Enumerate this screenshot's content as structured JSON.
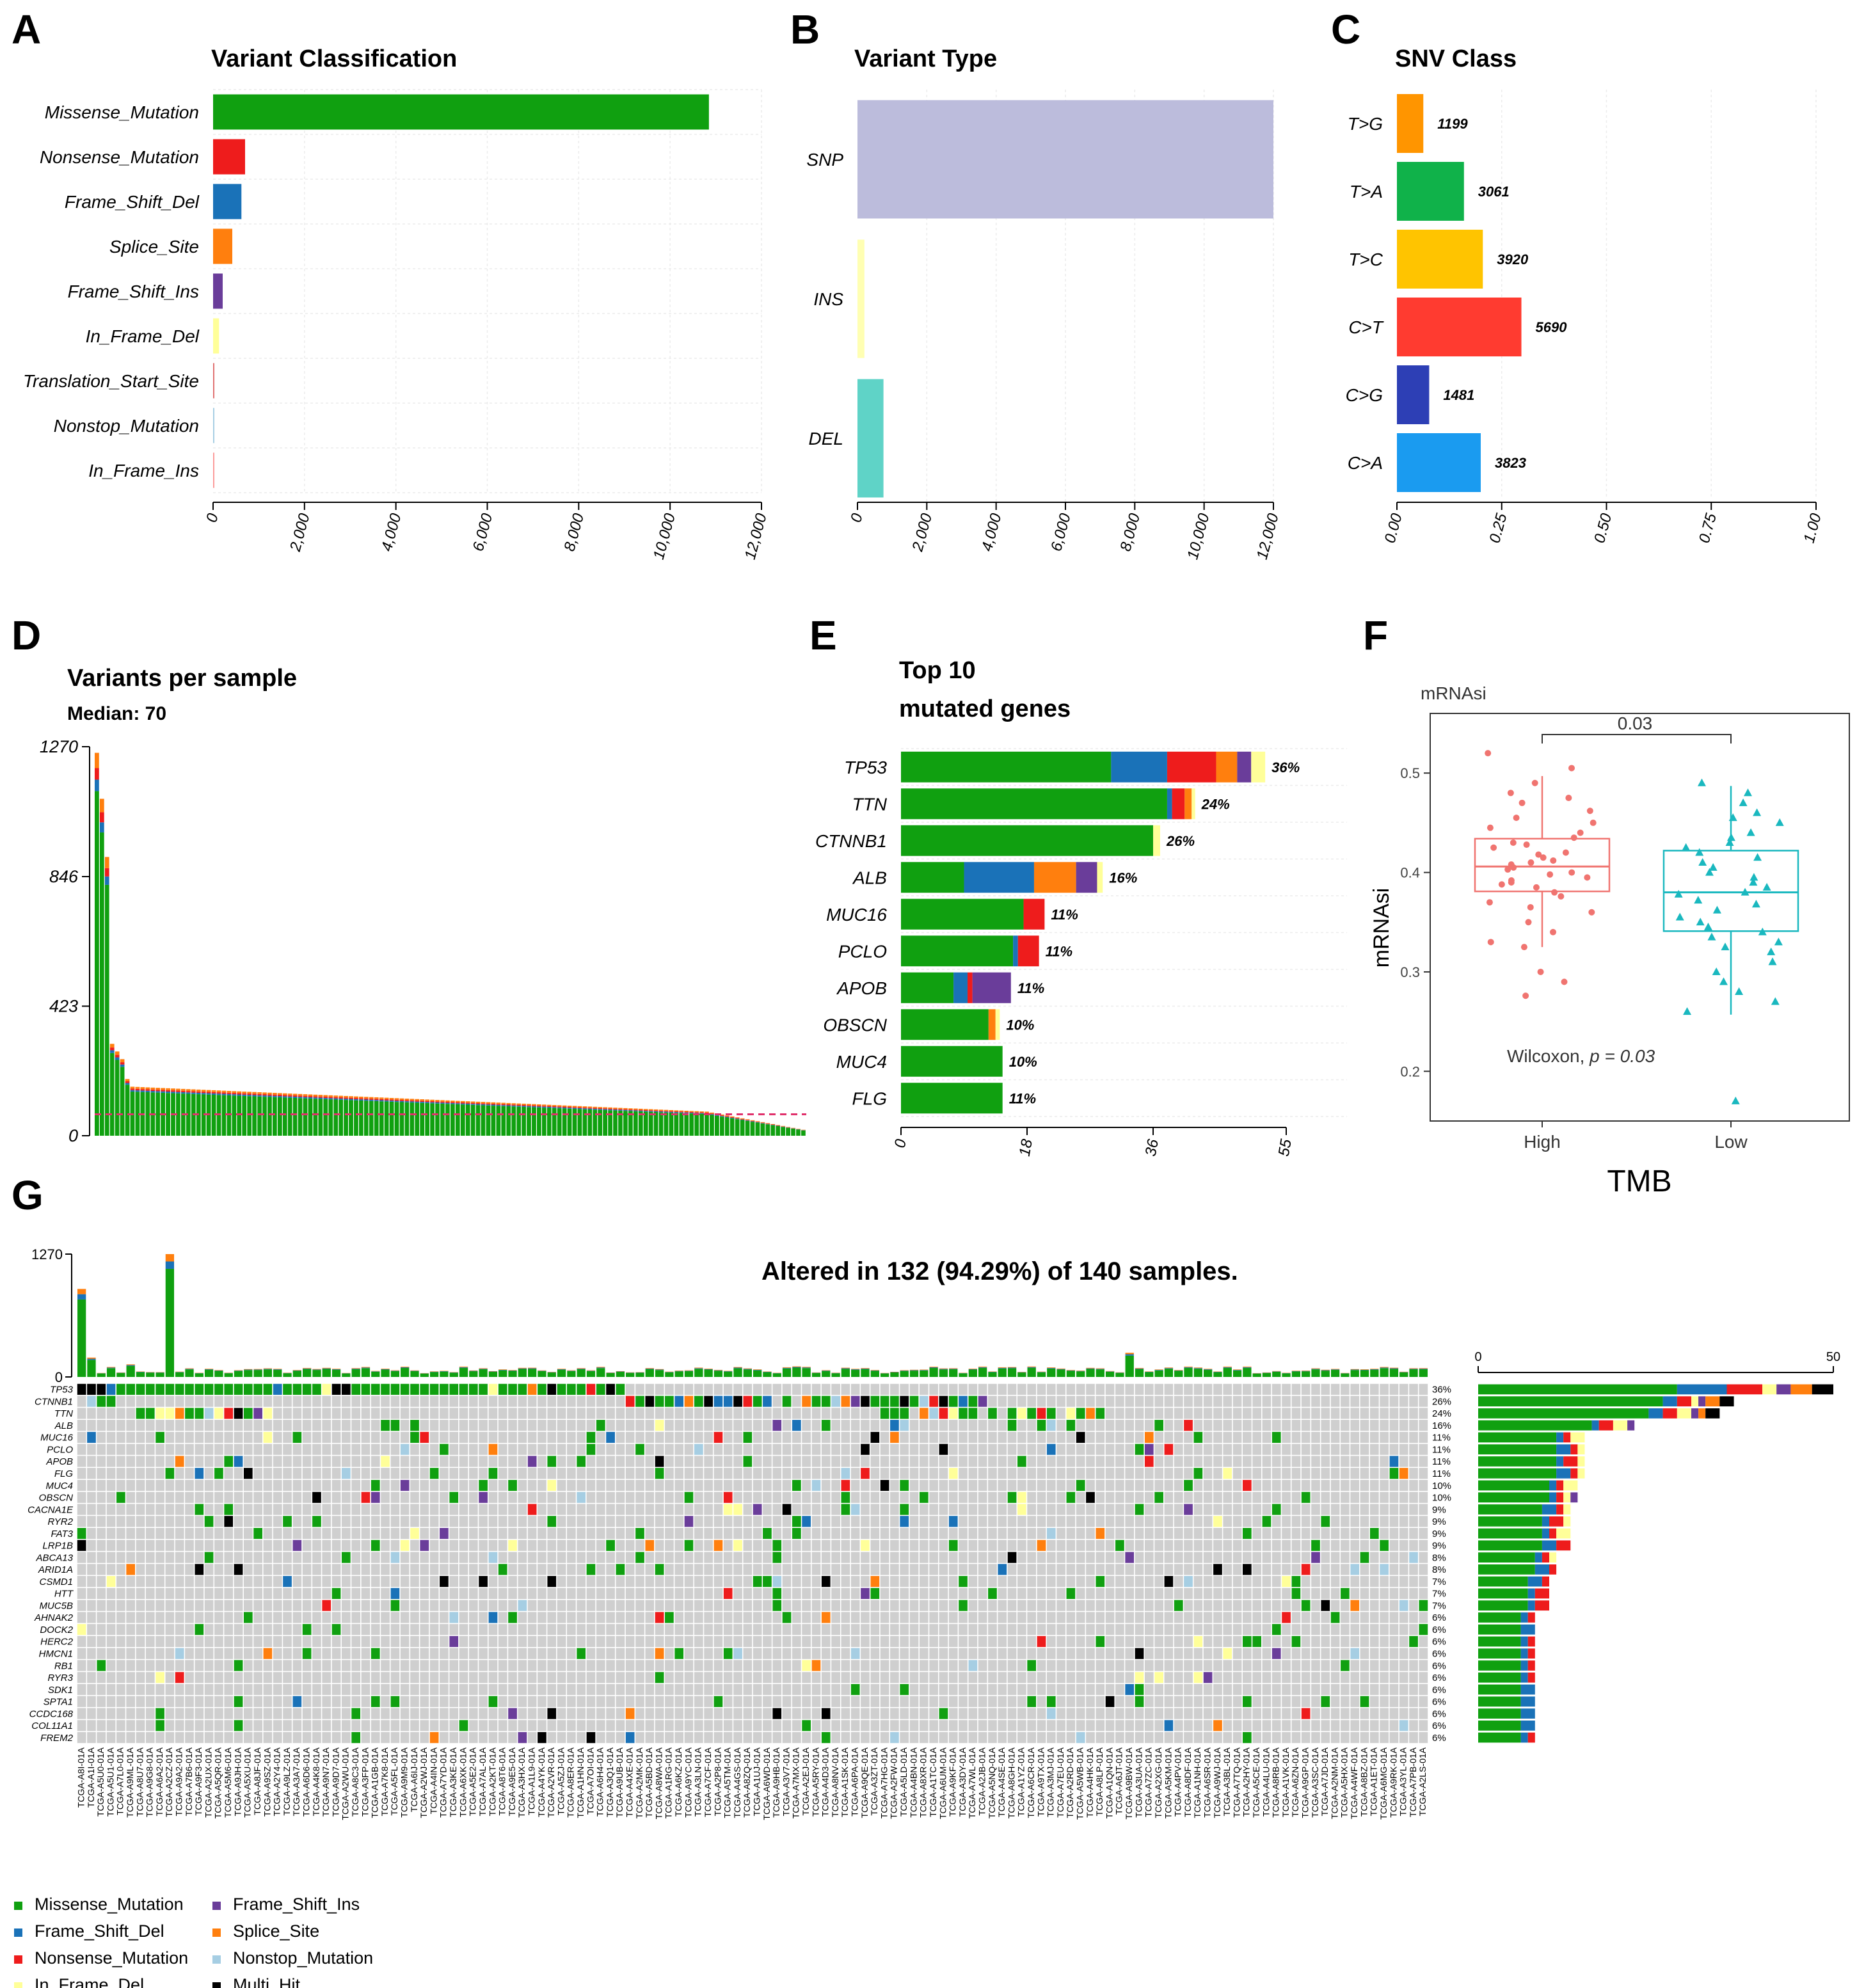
{
  "colors": {
    "Missense_Mutation": "#10a010",
    "Nonsense_Mutation": "#ee1c1c",
    "Frame_Shift_Del": "#1a72b8",
    "Splice_Site": "#ff7f0e",
    "Frame_Shift_Ins": "#6a3d9a",
    "In_Frame_Del": "#ffff99",
    "Translation_Start_Site": "#e07070",
    "Nonstop_Mutation": "#a6cee3",
    "In_Frame_Ins": "#fb9a99",
    "Multi_Hit": "#000000",
    "SNP": "#bcbcdc",
    "INS": "#ffffb3",
    "DEL": "#5fd3c7",
    "high": "#f07470",
    "low": "#1ab8bf",
    "empty_cell": "#cfcfcf"
  },
  "panel_labels": [
    "A",
    "B",
    "C",
    "D",
    "E",
    "F",
    "G"
  ],
  "chart_data": [
    {
      "panel": "A",
      "type": "bar",
      "orientation": "horizontal",
      "title": "Variant Classification",
      "categories": [
        "Missense_Mutation",
        "Nonsense_Mutation",
        "Frame_Shift_Del",
        "Splice_Site",
        "Frame_Shift_Ins",
        "In_Frame_Del",
        "Translation_Start_Site",
        "Nonstop_Mutation",
        "In_Frame_Ins"
      ],
      "values": [
        10850,
        700,
        620,
        420,
        210,
        130,
        25,
        15,
        10
      ],
      "xlim": [
        0,
        12000
      ],
      "xticks": [
        0,
        2000,
        4000,
        6000,
        8000,
        10000,
        12000
      ],
      "xtick_labels": [
        "0",
        "2,000",
        "4,000",
        "6,000",
        "8,000",
        "10,000",
        "12,000"
      ]
    },
    {
      "panel": "B",
      "type": "bar",
      "orientation": "horizontal",
      "title": "Variant Type",
      "categories": [
        "SNP",
        "INS",
        "DEL"
      ],
      "values": [
        12000,
        200,
        750
      ],
      "xlim": [
        0,
        12000
      ],
      "xticks": [
        0,
        2000,
        4000,
        6000,
        8000,
        10000,
        12000
      ],
      "xtick_labels": [
        "0",
        "2,000",
        "4,000",
        "6,000",
        "8,000",
        "10,000",
        "12,000"
      ]
    },
    {
      "panel": "C",
      "type": "bar",
      "orientation": "horizontal",
      "title": "SNV Class",
      "categories": [
        "T>G",
        "T>A",
        "T>C",
        "C>T",
        "C>G",
        "C>A"
      ],
      "values": [
        1199,
        3061,
        3920,
        5690,
        1481,
        3823
      ],
      "value_labels": [
        "1199",
        "3061",
        "3920",
        "5690",
        "1481",
        "3823"
      ],
      "fractions": [
        0.063,
        0.16,
        0.205,
        0.297,
        0.077,
        0.2
      ],
      "bar_colors": [
        "#ff9500",
        "#10b24a",
        "#ffc400",
        "#ff3b30",
        "#2d3fb5",
        "#1a9bf0"
      ],
      "xlim": [
        0,
        1
      ],
      "xtick_labels": [
        "0.00",
        "0.25",
        "0.50",
        "0.75",
        "1.00"
      ]
    },
    {
      "panel": "D",
      "type": "bar",
      "title": "Variants per sample",
      "subtitle": "Median: 70",
      "ylim": [
        0,
        1270
      ],
      "ytick_labels": [
        "0",
        "423",
        "846",
        "1270"
      ],
      "median": 70,
      "n_samples": 140
    },
    {
      "panel": "E",
      "type": "bar",
      "orientation": "horizontal",
      "title_lines": [
        "Top 10",
        "mutated genes"
      ],
      "categories": [
        "TP53",
        "TTN",
        "CTNNB1",
        "ALB",
        "MUC16",
        "PCLO",
        "APOB",
        "OBSCN",
        "MUC4",
        "FLG"
      ],
      "series": [
        {
          "name": "Missense_Mutation",
          "values": [
            30,
            38,
            36,
            9,
            17.5,
            16,
            7.5,
            12.5,
            14.5,
            14.5
          ]
        },
        {
          "name": "Frame_Shift_Del",
          "values": [
            8,
            0.7,
            0,
            10,
            0,
            0.7,
            2,
            0,
            0,
            0
          ]
        },
        {
          "name": "Nonsense_Mutation",
          "values": [
            7,
            1.8,
            0,
            0,
            3,
            3,
            0.7,
            0,
            0,
            0
          ]
        },
        {
          "name": "Splice_Site",
          "values": [
            3,
            1,
            0,
            6,
            0,
            0,
            0,
            1,
            0,
            0
          ]
        },
        {
          "name": "Frame_Shift_Ins",
          "values": [
            2,
            0,
            0,
            3,
            0,
            0,
            5.5,
            0,
            0,
            0
          ]
        },
        {
          "name": "In_Frame_Del",
          "values": [
            2,
            0.5,
            1,
            0.8,
            0,
            0,
            0,
            0.6,
            0,
            0
          ]
        }
      ],
      "percent_labels": [
        "36%",
        "24%",
        "26%",
        "16%",
        "11%",
        "11%",
        "11%",
        "10%",
        "10%",
        "11%"
      ],
      "xlim": [
        0,
        55
      ],
      "xtick_labels": [
        "0",
        "18",
        "36",
        "55"
      ]
    },
    {
      "panel": "F",
      "type": "boxplot",
      "title": "mRNAsi",
      "xlabel": "TMB",
      "ylabel": "mRNAsi",
      "categories": [
        "High",
        "Low"
      ],
      "ylim": [
        0.15,
        0.56
      ],
      "ytick_labels": [
        "0.2",
        "0.3",
        "0.4",
        "0.5"
      ],
      "boxes": [
        {
          "name": "High",
          "min": 0.325,
          "q1": 0.381,
          "median": 0.406,
          "q3": 0.434,
          "max": 0.497
        },
        {
          "name": "Low",
          "min": 0.257,
          "q1": 0.341,
          "median": 0.38,
          "q3": 0.422,
          "max": 0.487
        }
      ],
      "points_high": [
        0.52,
        0.505,
        0.49,
        0.48,
        0.475,
        0.47,
        0.462,
        0.455,
        0.45,
        0.445,
        0.44,
        0.435,
        0.43,
        0.428,
        0.425,
        0.42,
        0.418,
        0.415,
        0.412,
        0.41,
        0.408,
        0.405,
        0.403,
        0.4,
        0.398,
        0.395,
        0.392,
        0.39,
        0.388,
        0.385,
        0.38,
        0.376,
        0.37,
        0.365,
        0.36,
        0.35,
        0.34,
        0.33,
        0.325,
        0.3,
        0.29,
        0.276
      ],
      "points_low": [
        0.49,
        0.48,
        0.47,
        0.46,
        0.455,
        0.45,
        0.44,
        0.435,
        0.43,
        0.425,
        0.42,
        0.415,
        0.41,
        0.405,
        0.4,
        0.395,
        0.39,
        0.385,
        0.38,
        0.378,
        0.372,
        0.368,
        0.362,
        0.355,
        0.35,
        0.345,
        0.34,
        0.335,
        0.33,
        0.325,
        0.32,
        0.31,
        0.3,
        0.29,
        0.28,
        0.27,
        0.26,
        0.17
      ],
      "comparison_value": "0.03",
      "test_label": "Wilcoxon, ",
      "test_p_label": "p = 0.03"
    },
    {
      "panel": "G",
      "type": "heatmap",
      "title": "Altered in 132 (94.29%) of 140 samples.",
      "top_ylim": [
        0,
        1270
      ],
      "top_ytick_labels": [
        "0",
        "1270"
      ],
      "side_xtick_labels": [
        "0",
        "50"
      ],
      "side_xmax": 50,
      "genes": [
        "TP53",
        "CTNNB1",
        "TTN",
        "ALB",
        "MUC16",
        "PCLO",
        "APOB",
        "FLG",
        "MUC4",
        "OBSCN",
        "CACNA1E",
        "RYR2",
        "FAT3",
        "LRP1B",
        "ABCA13",
        "ARID1A",
        "CSMD1",
        "HTT",
        "MUC5B",
        "AHNAK2",
        "DOCK2",
        "HERC2",
        "HMCN1",
        "RB1",
        "RYR3",
        "SDK1",
        "SPTA1",
        "CCDC168",
        "COL11A1",
        "FREM2"
      ],
      "percent_labels": [
        "36%",
        "26%",
        "24%",
        "16%",
        "11%",
        "11%",
        "11%",
        "11%",
        "10%",
        "10%",
        "9%",
        "9%",
        "9%",
        "9%",
        "8%",
        "8%",
        "7%",
        "7%",
        "7%",
        "6%",
        "6%",
        "6%",
        "6%",
        "6%",
        "6%",
        "6%",
        "6%",
        "6%",
        "6%",
        "6%"
      ],
      "side_counts": [
        50,
        36,
        34,
        22,
        15,
        15,
        15,
        15,
        14,
        14,
        13,
        13,
        13,
        13,
        11,
        11,
        10,
        10,
        10,
        8,
        8,
        8,
        8,
        8,
        8,
        8,
        8,
        8,
        8,
        8
      ],
      "sample_ids": [
        "TCGA-A8I-01A",
        "TCGA-A1I-01A",
        "TCGA-A5U0-01A",
        "TCGA-A5U1-01A",
        "TCGA-A7L0-01A",
        "TCGA-A9ML-01A",
        "TCGA-A8U7-01A",
        "TCGA-A9G8-01A",
        "TCGA-A6A2-01A",
        "TCGA-A2CZ-01A",
        "TCGA-A9A2-01A",
        "TCGA-A7B6-01A",
        "TCGA-A9F3-01A",
        "TCGA-A2UX-01A",
        "TCGA-A5QR-01A",
        "TCGA-A5M6-01A",
        "TCGA-A9JH-01A",
        "TCGA-A5XU-01A",
        "TCGA-A8JF-01A",
        "TCGA-A9SZ-01A",
        "TCGA-A2Y4-01A",
        "TCGA-A9LZ-01A",
        "TCGA-A3A7-01A",
        "TCGA-A6D6-01A",
        "TCGA-A4K8-01A",
        "TCGA-A9N7-01A",
        "TCGA-A9D7-01A",
        "TCGA-A2WU-01A",
        "TCGA-A8C3-01A",
        "TCGA-A3FP-01A",
        "TCGA-A1GB-01A",
        "TCGA-A7K8-01A",
        "TCGA-A5FL-01A",
        "TCGA-A9M9-01A",
        "TCGA-A6IJ-01A",
        "TCGA-A2WJ-01A",
        "TCGA-A4IN-01A",
        "TCGA-A7YD-01A",
        "TCGA-A3KE-01A",
        "TCGA-A6XK-01A",
        "TCGA-A5E2-01A",
        "TCGA-A7AL-01A",
        "TCGA-A2KT-01A",
        "TCGA-A8T6-01A",
        "TCGA-A9E5-01A",
        "TCGA-A3HX-01A",
        "TCGA-A1L9-01A",
        "TCGA-A4YK-01A",
        "TCGA-A2VR-01A",
        "TCGA-A5ZJ-01A",
        "TCGA-A8ER-01A",
        "TCGA-A1HN-01A",
        "TCGA-A7OI-01A",
        "TCGA-A6H4-01A",
        "TCGA-A3Q1-01A",
        "TCGA-A9UB-01A",
        "TCGA-A4XE-01A",
        "TCGA-A2MK-01A",
        "TCGA-A5BD-01A",
        "TCGA-A8WA-01A",
        "TCGA-A1RG-01A",
        "TCGA-A6KZ-01A",
        "TCGA-A9YC-01A",
        "TCGA-A3LN-01A",
        "TCGA-A7CF-01A",
        "TCGA-A2P8-01A",
        "TCGA-A5TM-01A",
        "TCGA-A4GS-01A",
        "TCGA-A8ZQ-01A",
        "TCGA-A1UJ-01A",
        "TCGA-A6WD-01A",
        "TCGA-A9HB-01A",
        "TCGA-A3V7-01A",
        "TCGA-A7MX-01A",
        "TCGA-A2EJ-01A",
        "TCGA-A5RY-01A",
        "TCGA-A4D3-01A",
        "TCGA-A8NV-01A",
        "TCGA-A1SK-01A",
        "TCGA-A6PA-01A",
        "TCGA-A9QE-01A",
        "TCGA-A3ZT-01A",
        "TCGA-A7HG-01A",
        "TCGA-A2FW-01A",
        "TCGA-A5LD-01A",
        "TCGA-A4BN-01A",
        "TCGA-A8XR-01A",
        "TCGA-A1TC-01A",
        "TCGA-A6UM-01A",
        "TCGA-A9KF-01A",
        "TCGA-A3DY-01A",
        "TCGA-A7WL-01A",
        "TCGA-A2JB-01A",
        "TCGA-A5NQ-01A",
        "TCGA-A4SE-01A",
        "TCGA-A8GH-01A",
        "TCGA-A1YZ-01A",
        "TCGA-A6CR-01A",
        "TCGA-A9TX-01A",
        "TCGA-A3MJ-01A",
        "TCGA-A7EU-01A",
        "TCGA-A2RD-01A",
        "TCGA-A5WB-01A",
        "TCGA-A4HK-01A",
        "TCGA-A8LP-01A",
        "TCGA-A1QN-01A",
        "TCGA-A6JT-01A",
        "TCGA-A9BW-01A",
        "TCGA-A3UA-01A",
        "TCGA-A7ZC-01A",
        "TCGA-A2XG-01A",
        "TCGA-A5KM-01A",
        "TCGA-A4PV-01A",
        "TCGA-A8DF-01A",
        "TCGA-A1NH-01A",
        "TCGA-A6SR-01A",
        "TCGA-A9WJ-01A",
        "TCGA-A3BL-01A",
        "TCGA-A7TQ-01A",
        "TCGA-A2HY-01A",
        "TCGA-A5CE-01A",
        "TCGA-A4LU-01A",
        "TCGA-A8RB-01A",
        "TCGA-A1VK-01A",
        "TCGA-A6ZN-01A",
        "TCGA-A9GP-01A",
        "TCGA-A3SC-01A",
        "TCGA-A7JD-01A",
        "TCGA-A2NM-01A",
        "TCGA-A5HX-01A",
        "TCGA-A4WF-01A",
        "TCGA-A8BZ-01A",
        "TCGA-A1ET-01A",
        "TCGA-A6MG-01A",
        "TCGA-A9RK-01A",
        "TCGA-A3YL-01A",
        "TCGA-A7PB-01A",
        "TCGA-A2LS-01A"
      ]
    }
  ],
  "legend": {
    "items": [
      {
        "key": "Missense_Mutation",
        "label": "Missense_Mutation"
      },
      {
        "key": "Frame_Shift_Del",
        "label": "Frame_Shift_Del"
      },
      {
        "key": "Nonsense_Mutation",
        "label": "Nonsense_Mutation"
      },
      {
        "key": "In_Frame_Del",
        "label": "In_Frame_Del"
      },
      {
        "key": "Frame_Shift_Ins",
        "label": "Frame_Shift_Ins"
      },
      {
        "key": "Splice_Site",
        "label": "Splice_Site"
      },
      {
        "key": "Nonstop_Mutation",
        "label": "Nonstop_Mutation"
      },
      {
        "key": "Multi_Hit",
        "label": "Multi_Hit"
      }
    ]
  }
}
